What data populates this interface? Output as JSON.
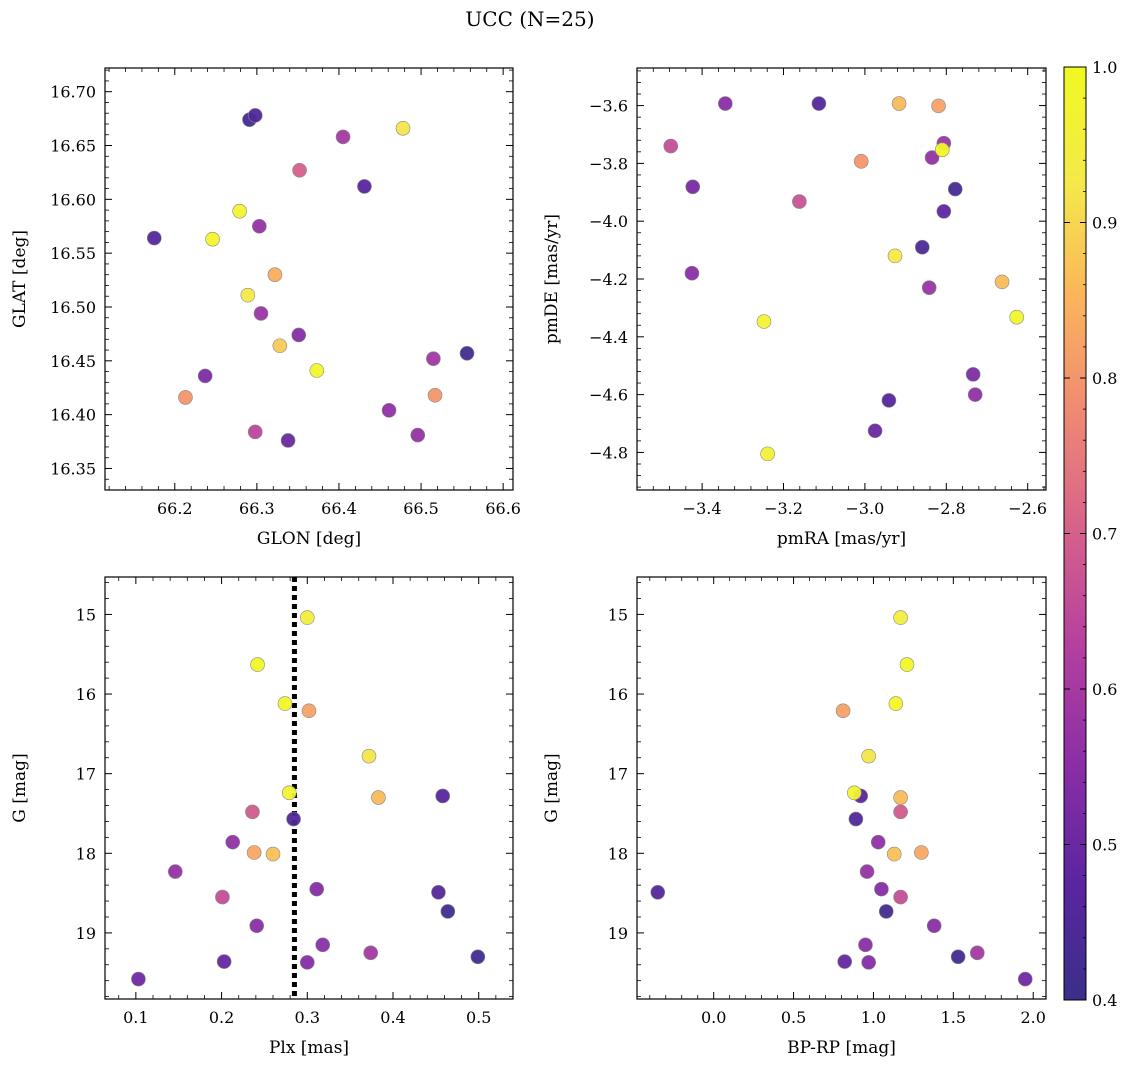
{
  "figure": {
    "title": "UCC (N=25)",
    "colorbar": {
      "min": 0.4,
      "max": 1.0,
      "colormap": "plasma",
      "ticks": [
        "0.4",
        "0.5",
        "0.6",
        "0.7",
        "0.8",
        "0.9",
        "1.0"
      ]
    }
  },
  "colors": {
    "plasma": [
      "#3b2f8a",
      "#5a25a0",
      "#8a2ea6",
      "#b33fa0",
      "#d5608b",
      "#ef8774",
      "#fbb35c",
      "#f4e94a",
      "#f0f921"
    ],
    "edge": "#888888",
    "vline": "#000000"
  },
  "chart_data": [
    {
      "type": "scatter",
      "xlabel": "GLON [deg]",
      "ylabel": "GLAT [deg]",
      "xlim": [
        66.115,
        66.612
      ],
      "ylim": [
        16.33,
        16.722
      ],
      "xticks": [
        "66.2",
        "66.3",
        "66.4",
        "66.5",
        "66.6"
      ],
      "yticks": [
        "16.35",
        "16.40",
        "16.45",
        "16.50",
        "16.55",
        "16.60",
        "16.65",
        "16.70"
      ],
      "points": [
        {
          "x": 66.291,
          "y": 16.674,
          "c": 0.42
        },
        {
          "x": 66.298,
          "y": 16.678,
          "c": 0.45
        },
        {
          "x": 66.405,
          "y": 16.658,
          "c": 0.6
        },
        {
          "x": 66.478,
          "y": 16.666,
          "c": 0.92
        },
        {
          "x": 66.352,
          "y": 16.627,
          "c": 0.7
        },
        {
          "x": 66.431,
          "y": 16.612,
          "c": 0.47
        },
        {
          "x": 66.279,
          "y": 16.589,
          "c": 0.97
        },
        {
          "x": 66.175,
          "y": 16.564,
          "c": 0.46
        },
        {
          "x": 66.246,
          "y": 16.563,
          "c": 0.98
        },
        {
          "x": 66.303,
          "y": 16.575,
          "c": 0.57
        },
        {
          "x": 66.322,
          "y": 16.53,
          "c": 0.84
        },
        {
          "x": 66.289,
          "y": 16.511,
          "c": 0.93
        },
        {
          "x": 66.305,
          "y": 16.494,
          "c": 0.58
        },
        {
          "x": 66.351,
          "y": 16.474,
          "c": 0.54
        },
        {
          "x": 66.328,
          "y": 16.464,
          "c": 0.88
        },
        {
          "x": 66.373,
          "y": 16.441,
          "c": 0.98
        },
        {
          "x": 66.515,
          "y": 16.452,
          "c": 0.59
        },
        {
          "x": 66.556,
          "y": 16.457,
          "c": 0.42
        },
        {
          "x": 66.237,
          "y": 16.436,
          "c": 0.53
        },
        {
          "x": 66.213,
          "y": 16.416,
          "c": 0.8
        },
        {
          "x": 66.517,
          "y": 16.418,
          "c": 0.8
        },
        {
          "x": 66.461,
          "y": 16.404,
          "c": 0.56
        },
        {
          "x": 66.298,
          "y": 16.384,
          "c": 0.64
        },
        {
          "x": 66.338,
          "y": 16.376,
          "c": 0.5
        },
        {
          "x": 66.496,
          "y": 16.381,
          "c": 0.57
        }
      ]
    },
    {
      "type": "scatter",
      "xlabel": "pmRA [mas/yr]",
      "ylabel": "pmDE [mas/yr]",
      "xlim": [
        -3.56,
        -2.555
      ],
      "ylim": [
        -4.93,
        -3.47
      ],
      "xticks": [
        "−3.4",
        "−3.2",
        "−3.0",
        "−2.8",
        "−2.6"
      ],
      "yticks": [
        "−4.8",
        "−4.6",
        "−4.4",
        "−4.2",
        "−4.0",
        "−3.8",
        "−3.6"
      ],
      "points": [
        {
          "x": -3.343,
          "y": -3.593,
          "c": 0.55
        },
        {
          "x": -3.113,
          "y": -3.593,
          "c": 0.46
        },
        {
          "x": -2.916,
          "y": -3.593,
          "c": 0.86
        },
        {
          "x": -2.819,
          "y": -3.601,
          "c": 0.82
        },
        {
          "x": -3.477,
          "y": -3.74,
          "c": 0.66
        },
        {
          "x": -2.806,
          "y": -3.73,
          "c": 0.58
        },
        {
          "x": -2.81,
          "y": -3.753,
          "c": 0.99
        },
        {
          "x": -2.835,
          "y": -3.78,
          "c": 0.57
        },
        {
          "x": -3.009,
          "y": -3.793,
          "c": 0.8
        },
        {
          "x": -3.423,
          "y": -3.881,
          "c": 0.52
        },
        {
          "x": -2.778,
          "y": -3.889,
          "c": 0.43
        },
        {
          "x": -3.161,
          "y": -3.932,
          "c": 0.67
        },
        {
          "x": -2.806,
          "y": -3.966,
          "c": 0.48
        },
        {
          "x": -2.859,
          "y": -4.09,
          "c": 0.44
        },
        {
          "x": -2.926,
          "y": -4.12,
          "c": 0.93
        },
        {
          "x": -3.425,
          "y": -4.18,
          "c": 0.55
        },
        {
          "x": -2.663,
          "y": -4.21,
          "c": 0.86
        },
        {
          "x": -2.842,
          "y": -4.23,
          "c": 0.58
        },
        {
          "x": -2.627,
          "y": -4.332,
          "c": 0.98
        },
        {
          "x": -3.248,
          "y": -4.347,
          "c": 0.97
        },
        {
          "x": -2.734,
          "y": -4.53,
          "c": 0.53
        },
        {
          "x": -2.729,
          "y": -4.6,
          "c": 0.56
        },
        {
          "x": -2.941,
          "y": -4.62,
          "c": 0.46
        },
        {
          "x": -2.975,
          "y": -4.725,
          "c": 0.5
        },
        {
          "x": -3.239,
          "y": -4.805,
          "c": 0.96
        }
      ]
    },
    {
      "type": "scatter",
      "xlabel": "Plx [mas]",
      "ylabel": "G [mag]",
      "xlim": [
        0.064,
        0.54
      ],
      "ylim": [
        19.83,
        14.53
      ],
      "y_inverted": true,
      "vline": 0.285,
      "xticks": [
        "0.1",
        "0.2",
        "0.3",
        "0.4",
        "0.5"
      ],
      "yticks": [
        "15",
        "16",
        "17",
        "18",
        "19"
      ],
      "points": [
        {
          "x": 0.3,
          "y": 15.04,
          "c": 0.95
        },
        {
          "x": 0.242,
          "y": 15.63,
          "c": 0.99
        },
        {
          "x": 0.274,
          "y": 16.12,
          "c": 0.99
        },
        {
          "x": 0.302,
          "y": 16.21,
          "c": 0.82
        },
        {
          "x": 0.372,
          "y": 16.78,
          "c": 0.92
        },
        {
          "x": 0.279,
          "y": 17.24,
          "c": 0.97
        },
        {
          "x": 0.383,
          "y": 17.3,
          "c": 0.86
        },
        {
          "x": 0.458,
          "y": 17.28,
          "c": 0.47
        },
        {
          "x": 0.236,
          "y": 17.48,
          "c": 0.69
        },
        {
          "x": 0.284,
          "y": 17.57,
          "c": 0.45
        },
        {
          "x": 0.213,
          "y": 17.86,
          "c": 0.56
        },
        {
          "x": 0.238,
          "y": 17.99,
          "c": 0.83
        },
        {
          "x": 0.26,
          "y": 18.01,
          "c": 0.87
        },
        {
          "x": 0.146,
          "y": 18.23,
          "c": 0.57
        },
        {
          "x": 0.311,
          "y": 18.45,
          "c": 0.54
        },
        {
          "x": 0.453,
          "y": 18.49,
          "c": 0.46
        },
        {
          "x": 0.201,
          "y": 18.55,
          "c": 0.66
        },
        {
          "x": 0.464,
          "y": 18.73,
          "c": 0.42
        },
        {
          "x": 0.241,
          "y": 18.91,
          "c": 0.55
        },
        {
          "x": 0.318,
          "y": 19.15,
          "c": 0.55
        },
        {
          "x": 0.374,
          "y": 19.25,
          "c": 0.6
        },
        {
          "x": 0.499,
          "y": 19.3,
          "c": 0.42
        },
        {
          "x": 0.203,
          "y": 19.36,
          "c": 0.49
        },
        {
          "x": 0.3,
          "y": 19.37,
          "c": 0.54
        },
        {
          "x": 0.103,
          "y": 19.58,
          "c": 0.51
        }
      ]
    },
    {
      "type": "scatter",
      "xlabel": "BP-RP [mag]",
      "ylabel": "G [mag]",
      "xlim": [
        -0.48,
        2.08
      ],
      "ylim": [
        19.83,
        14.53
      ],
      "y_inverted": true,
      "xticks": [
        "0.0",
        "0.5",
        "1.0",
        "1.5",
        "2.0"
      ],
      "yticks": [
        "15",
        "16",
        "17",
        "18",
        "19"
      ],
      "points": [
        {
          "x": 1.17,
          "y": 15.04,
          "c": 0.95
        },
        {
          "x": 1.21,
          "y": 15.63,
          "c": 0.99
        },
        {
          "x": 1.14,
          "y": 16.12,
          "c": 0.99
        },
        {
          "x": 0.81,
          "y": 16.21,
          "c": 0.82
        },
        {
          "x": 0.97,
          "y": 16.78,
          "c": 0.92
        },
        {
          "x": 0.88,
          "y": 17.24,
          "c": 0.97
        },
        {
          "x": 1.17,
          "y": 17.3,
          "c": 0.86
        },
        {
          "x": 0.92,
          "y": 17.28,
          "c": 0.47
        },
        {
          "x": 1.17,
          "y": 17.48,
          "c": 0.69
        },
        {
          "x": 0.89,
          "y": 17.57,
          "c": 0.45
        },
        {
          "x": 1.03,
          "y": 17.86,
          "c": 0.56
        },
        {
          "x": 1.3,
          "y": 17.99,
          "c": 0.83
        },
        {
          "x": 1.13,
          "y": 18.01,
          "c": 0.87
        },
        {
          "x": 0.96,
          "y": 18.23,
          "c": 0.57
        },
        {
          "x": 1.05,
          "y": 18.45,
          "c": 0.54
        },
        {
          "x": -0.35,
          "y": 18.49,
          "c": 0.46
        },
        {
          "x": 1.17,
          "y": 18.55,
          "c": 0.66
        },
        {
          "x": 1.08,
          "y": 18.73,
          "c": 0.42
        },
        {
          "x": 1.38,
          "y": 18.91,
          "c": 0.55
        },
        {
          "x": 0.95,
          "y": 19.15,
          "c": 0.55
        },
        {
          "x": 1.65,
          "y": 19.25,
          "c": 0.6
        },
        {
          "x": 1.53,
          "y": 19.3,
          "c": 0.42
        },
        {
          "x": 0.82,
          "y": 19.36,
          "c": 0.49
        },
        {
          "x": 0.97,
          "y": 19.37,
          "c": 0.54
        },
        {
          "x": 1.95,
          "y": 19.58,
          "c": 0.51
        }
      ]
    }
  ]
}
